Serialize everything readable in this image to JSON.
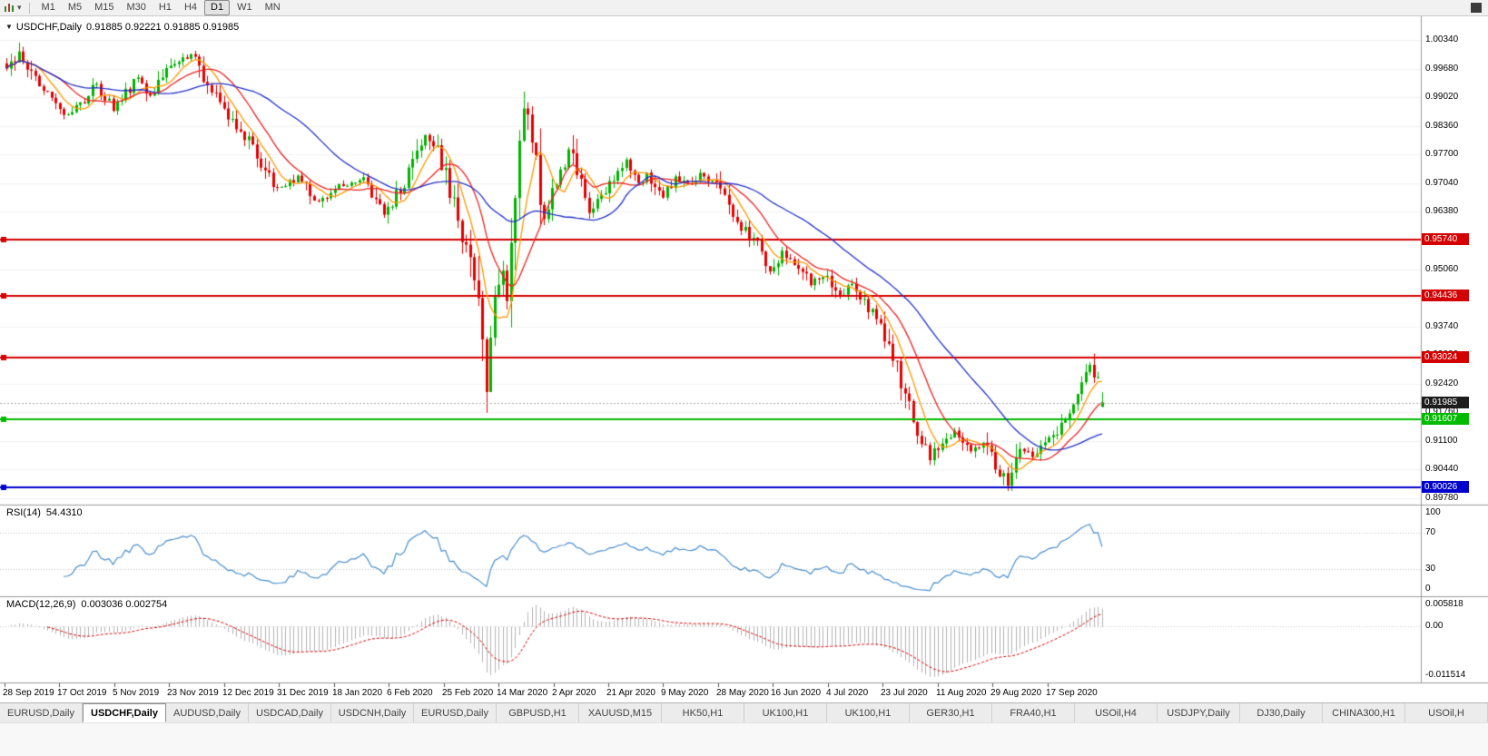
{
  "icons": {
    "collapse": "▼",
    "caret": "▾"
  },
  "toolbar": {
    "timeframes": [
      {
        "label": "M1",
        "active": false
      },
      {
        "label": "M5",
        "active": false
      },
      {
        "label": "M15",
        "active": false
      },
      {
        "label": "M30",
        "active": false
      },
      {
        "label": "H1",
        "active": false
      },
      {
        "label": "H4",
        "active": false
      },
      {
        "label": "D1",
        "active": true
      },
      {
        "label": "W1",
        "active": false
      },
      {
        "label": "MN",
        "active": false
      }
    ]
  },
  "chart": {
    "symbol_title": "USDCHF,Daily",
    "ohlc_text": "0.91885 0.92221 0.91885 0.91985"
  },
  "price_axis": {
    "labels": [
      "1.00340",
      "0.99680",
      "0.99020",
      "0.98360",
      "0.97700",
      "0.97040",
      "0.96380",
      "0.95720",
      "0.95060",
      "0.94400",
      "0.93740",
      "0.93080",
      "0.92420",
      "0.91760",
      "0.91100",
      "0.90440",
      "0.89780"
    ]
  },
  "levels": {
    "resistance": [
      {
        "value": "0.95740",
        "price": 0.9574,
        "color": "#d40000"
      },
      {
        "value": "0.94436",
        "price": 0.94436,
        "color": "#d40000"
      },
      {
        "value": "0.93024",
        "price": 0.93024,
        "color": "#d40000"
      }
    ],
    "support_green": {
      "value": "0.91607",
      "price": 0.91607,
      "color": "#00bb00"
    },
    "support_blue": {
      "value": "0.90026",
      "price": 0.90026,
      "color": "#0000cd"
    },
    "current_price": {
      "value": "0.91985",
      "price": 0.91985,
      "color": "#1c1c1c"
    }
  },
  "rsi": {
    "label": "RSI(14)",
    "value": "54.4310",
    "axis_labels": [
      "100",
      "70",
      "30",
      "0"
    ],
    "line_color": "#4a8fce"
  },
  "macd": {
    "label": "MACD(12,26,9)",
    "values": "0.003036 0.002754",
    "axis_labels": [
      "0.005818",
      "0.00",
      "-0.011514"
    ],
    "histogram_color": "#b4b4b4",
    "signal_color": "#dd0000"
  },
  "date_axis": [
    "28 Sep 2019",
    "17 Oct 2019",
    "5 Nov 2019",
    "23 Nov 2019",
    "12 Dec 2019",
    "31 Dec 2019",
    "18 Jan 2020",
    "6 Feb 2020",
    "25 Feb 2020",
    "14 Mar 2020",
    "2 Apr 2020",
    "21 Apr 2020",
    "9 May 2020",
    "28 May 2020",
    "16 Jun 2020",
    "4 Jul 2020",
    "23 Jul 2020",
    "11 Aug 2020",
    "29 Aug 2020",
    "17 Sep 2020"
  ],
  "tabs": [
    {
      "label": "EURUSD,Daily",
      "active": false
    },
    {
      "label": "USDCHF,Daily",
      "active": true
    },
    {
      "label": "AUDUSD,Daily",
      "active": false
    },
    {
      "label": "USDCAD,Daily",
      "active": false
    },
    {
      "label": "USDCNH,Daily",
      "active": false
    },
    {
      "label": "EURUSD,Daily",
      "active": false
    },
    {
      "label": "GBPUSD,H1",
      "active": false
    },
    {
      "label": "XAUUSD,M15",
      "active": false
    },
    {
      "label": "HK50,H1",
      "active": false
    },
    {
      "label": "UK100,H1",
      "active": false
    },
    {
      "label": "UK100,H1",
      "active": false
    },
    {
      "label": "GER30,H1",
      "active": false
    },
    {
      "label": "FRA40,H1",
      "active": false
    },
    {
      "label": "USOil,H4",
      "active": false
    },
    {
      "label": "USDJPY,Daily",
      "active": false
    },
    {
      "label": "DJ30,Daily",
      "active": false
    },
    {
      "label": "CHINA300,H1",
      "active": false
    },
    {
      "label": "USOil,H",
      "active": false
    }
  ],
  "chart_data": {
    "type": "candlestick",
    "symbol": "USDCHF",
    "timeframe": "Daily",
    "title": "USDCHF,Daily",
    "ylim": [
      0.8963,
      1.0086
    ],
    "candle_count": 268,
    "up_color": "#00b300",
    "down_color": "#e60000",
    "last_candle": {
      "open": 0.91885,
      "high": 0.92221,
      "low": 0.91885,
      "close": 0.91985
    },
    "key_extremes": [
      {
        "index": 3,
        "high": 1.0028
      },
      {
        "index": 117,
        "low": 0.9175
      },
      {
        "index": 126,
        "high": 0.9901
      },
      {
        "index": 244,
        "low": 0.8999
      }
    ],
    "moving_averages": [
      {
        "period": 7,
        "color": "#ff9900"
      },
      {
        "period": 14,
        "color": "#ee2222"
      },
      {
        "period": 34,
        "color": "#2233cc"
      }
    ],
    "hlines": [
      {
        "price": 0.9574,
        "color": "#d40000",
        "width": 2
      },
      {
        "price": 0.94436,
        "color": "#d40000",
        "width": 2
      },
      {
        "price": 0.93024,
        "color": "#d40000",
        "width": 2
      },
      {
        "price": 0.91607,
        "color": "#00bb00",
        "width": 2
      },
      {
        "price": 0.90026,
        "color": "#0000cd",
        "width": 2
      }
    ],
    "rsi": {
      "period": 14,
      "current": 54.431,
      "overbought": 70,
      "oversold": 30
    },
    "macd": {
      "fast": 12,
      "slow": 26,
      "signal": 9,
      "current_macd": 0.003036,
      "current_signal": 0.002754,
      "ymax": 0.005818,
      "ymin": -0.011514
    },
    "price_path": [
      [
        0,
        0.9965
      ],
      [
        3,
        1.0005
      ],
      [
        7,
        0.995
      ],
      [
        14,
        0.9862
      ],
      [
        18,
        0.9888
      ],
      [
        22,
        0.993
      ],
      [
        26,
        0.9875
      ],
      [
        32,
        0.9945
      ],
      [
        35,
        0.9905
      ],
      [
        41,
        0.9985
      ],
      [
        45,
        1.0
      ],
      [
        48,
        0.994
      ],
      [
        54,
        0.9862
      ],
      [
        58,
        0.9815
      ],
      [
        66,
        0.969
      ],
      [
        71,
        0.9718
      ],
      [
        76,
        0.9662
      ],
      [
        81,
        0.97
      ],
      [
        87,
        0.9712
      ],
      [
        92,
        0.9632
      ],
      [
        97,
        0.9705
      ],
      [
        102,
        0.982
      ],
      [
        105,
        0.978
      ],
      [
        109,
        0.965
      ],
      [
        112,
        0.956
      ],
      [
        115,
        0.943
      ],
      [
        117,
        0.923
      ],
      [
        119,
        0.945
      ],
      [
        121,
        0.952
      ],
      [
        122,
        0.943
      ],
      [
        126,
        0.988
      ],
      [
        129,
        0.976
      ],
      [
        131,
        0.962
      ],
      [
        133,
        0.969
      ],
      [
        137,
        0.978
      ],
      [
        140,
        0.97
      ],
      [
        142,
        0.964
      ],
      [
        146,
        0.9685
      ],
      [
        151,
        0.976
      ],
      [
        154,
        0.97
      ],
      [
        156,
        0.973
      ],
      [
        160,
        0.9672
      ],
      [
        163,
        0.972
      ],
      [
        166,
        0.97
      ],
      [
        169,
        0.9722
      ],
      [
        173,
        0.9705
      ],
      [
        176,
        0.9655
      ],
      [
        179,
        0.9605
      ],
      [
        183,
        0.956
      ],
      [
        186,
        0.9505
      ],
      [
        189,
        0.9545
      ],
      [
        193,
        0.9512
      ],
      [
        196,
        0.9472
      ],
      [
        200,
        0.9492
      ],
      [
        203,
        0.9445
      ],
      [
        206,
        0.9472
      ],
      [
        209,
        0.9425
      ],
      [
        213,
        0.9385
      ],
      [
        216,
        0.9302
      ],
      [
        219,
        0.9222
      ],
      [
        222,
        0.9135
      ],
      [
        225,
        0.9072
      ],
      [
        228,
        0.9112
      ],
      [
        231,
        0.9132
      ],
      [
        235,
        0.9082
      ],
      [
        238,
        0.9112
      ],
      [
        241,
        0.9052
      ],
      [
        244,
        0.9012
      ],
      [
        247,
        0.9092
      ],
      [
        250,
        0.9072
      ],
      [
        253,
        0.9102
      ],
      [
        256,
        0.9132
      ],
      [
        259,
        0.9185
      ],
      [
        262,
        0.9255
      ],
      [
        264,
        0.9282
      ],
      [
        265,
        0.9262
      ],
      [
        266,
        0.9235
      ],
      [
        267,
        0.91985
      ]
    ]
  }
}
